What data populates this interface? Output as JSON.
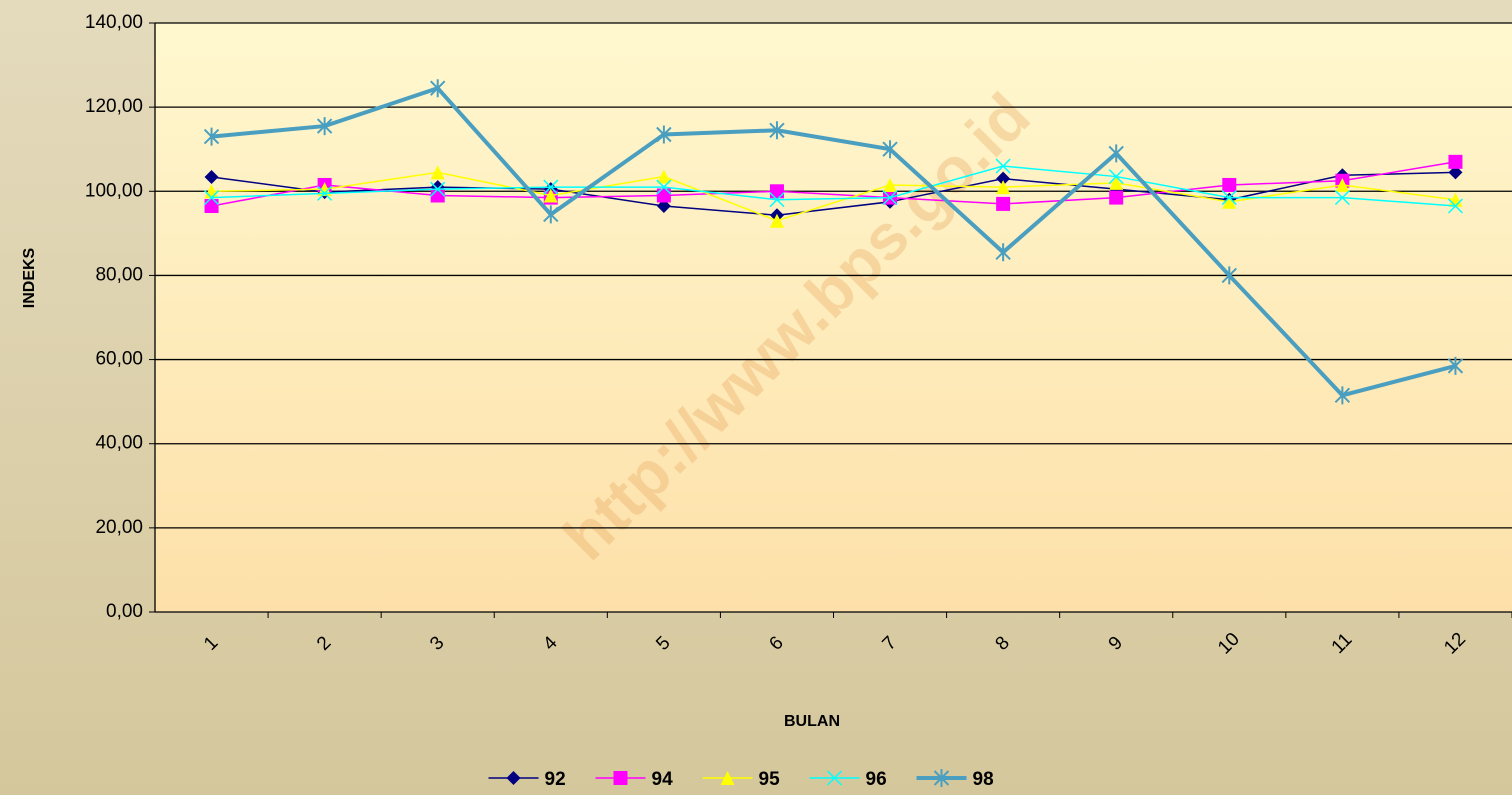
{
  "chart_data": {
    "type": "line",
    "watermark": "http://www.bps.go.id",
    "y_label": "INDEKS",
    "x_label": "BULAN",
    "categories": [
      "1",
      "2",
      "3",
      "4",
      "5",
      "6",
      "7",
      "8",
      "9",
      "10",
      "11",
      "12"
    ],
    "series": [
      {
        "name": "92",
        "color": "#000080",
        "marker": "diamond",
        "line_width": 1.5,
        "values": [
          103.4,
          99.8,
          101,
          100.5,
          96.5,
          94.3,
          97.5,
          103,
          100.5,
          98,
          103.8,
          104.5
        ]
      },
      {
        "name": "94",
        "color": "#ff00ff",
        "marker": "square",
        "line_width": 1.5,
        "values": [
          96.5,
          101.5,
          99,
          98.5,
          99,
          100,
          98.5,
          97,
          98.5,
          101.5,
          102.5,
          107
        ]
      },
      {
        "name": "95",
        "color": "#ffff00",
        "marker": "triangle",
        "line_width": 1.5,
        "values": [
          100,
          100.5,
          104.5,
          99,
          103.5,
          93,
          101.5,
          101,
          102,
          97.5,
          101.5,
          98
        ]
      },
      {
        "name": "96",
        "color": "#00ffff",
        "marker": "x",
        "line_width": 1.5,
        "values": [
          98.5,
          99.5,
          100.5,
          101,
          101,
          98,
          98.5,
          106,
          103.5,
          98.5,
          98.5,
          96.5
        ]
      },
      {
        "name": "98",
        "color": "#4a9fc0",
        "marker": "star",
        "line_width": 4,
        "values": [
          113,
          115.5,
          124.5,
          94.5,
          113.5,
          114.5,
          110,
          85.5,
          109,
          80,
          51.5,
          58.5
        ]
      }
    ],
    "ylim": [
      0,
      140
    ],
    "yticks": [
      {
        "value": 0,
        "label": "0,00"
      },
      {
        "value": 20,
        "label": "20,00"
      },
      {
        "value": 40,
        "label": "40,00"
      },
      {
        "value": 60,
        "label": "60,00"
      },
      {
        "value": 80,
        "label": "80,00"
      },
      {
        "value": 100,
        "label": "100,00"
      },
      {
        "value": 120,
        "label": "120,00"
      },
      {
        "value": 140,
        "label": "140,00"
      }
    ],
    "grid": true,
    "legend": "bottom"
  }
}
